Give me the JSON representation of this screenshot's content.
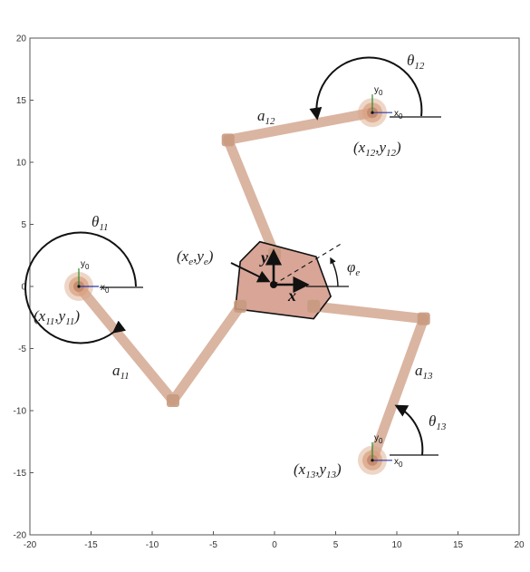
{
  "axes": {
    "xlim": [
      -20,
      20
    ],
    "ylim": [
      -20,
      20
    ],
    "x_ticks": [
      "-20",
      "-15",
      "-10",
      "-5",
      "0",
      "5",
      "10",
      "15",
      "20"
    ],
    "y_ticks": [
      "20",
      "15",
      "10",
      "5",
      "0",
      "-5",
      "-10",
      "-15",
      "-20"
    ]
  },
  "colors": {
    "link": "#d9b29e",
    "joint": "#c89a80",
    "base": "#d9a383",
    "platform": "#d8a597",
    "ink": "#111111"
  },
  "bases": [
    {
      "id": "11",
      "x": -16,
      "y": 0
    },
    {
      "id": "12",
      "x": 8,
      "y": 14
    },
    {
      "id": "13",
      "x": 8,
      "y": -14
    }
  ],
  "legs": [
    {
      "id": "11",
      "points": [
        [
          -16,
          0
        ],
        [
          -8.3,
          -9.2
        ],
        [
          -2.8,
          -1.6
        ]
      ]
    },
    {
      "id": "12",
      "points": [
        [
          8,
          14
        ],
        [
          -3.8,
          11.8
        ],
        [
          0,
          2.6
        ]
      ]
    },
    {
      "id": "13",
      "points": [
        [
          8,
          -14
        ],
        [
          12.2,
          -2.6
        ],
        [
          3.2,
          -1.6
        ]
      ]
    }
  ],
  "platform": {
    "center": [
      0,
      0
    ],
    "vertices": [
      [
        -1.2,
        3.6
      ],
      [
        3.4,
        2.4
      ],
      [
        4.6,
        -0.8
      ],
      [
        3.2,
        -2.6
      ],
      [
        -3.2,
        -1.8
      ],
      [
        -2.8,
        2.0
      ]
    ]
  },
  "labels": {
    "theta11": {
      "main": "θ",
      "sub": "11"
    },
    "theta12": {
      "main": "θ",
      "sub": "12"
    },
    "theta13": {
      "main": "θ",
      "sub": "13"
    },
    "a11": {
      "main": "a",
      "sub": "11"
    },
    "a12": {
      "main": "a",
      "sub": "12"
    },
    "a13": {
      "main": "a",
      "sub": "13"
    },
    "phi_e": {
      "main": "φ",
      "sub": "e"
    },
    "base11": {
      "open": "(x",
      "s1": "11",
      "mid": ",y",
      "s2": "11",
      "close": ")"
    },
    "base12": {
      "open": "(x",
      "s1": "12",
      "mid": ",y",
      "s2": "12",
      "close": ")"
    },
    "base13": {
      "open": "(x",
      "s1": "13",
      "mid": ",y",
      "s2": "13",
      "close": ")"
    },
    "platform_pos": {
      "open": "(x",
      "s1": "e",
      "mid": ",y",
      "s2": "e",
      "close": ")"
    },
    "frame_x": "x",
    "frame_y": "y",
    "local_x": {
      "main": "x",
      "sub": "0"
    },
    "local_y": {
      "main": "y",
      "sub": "0"
    }
  }
}
